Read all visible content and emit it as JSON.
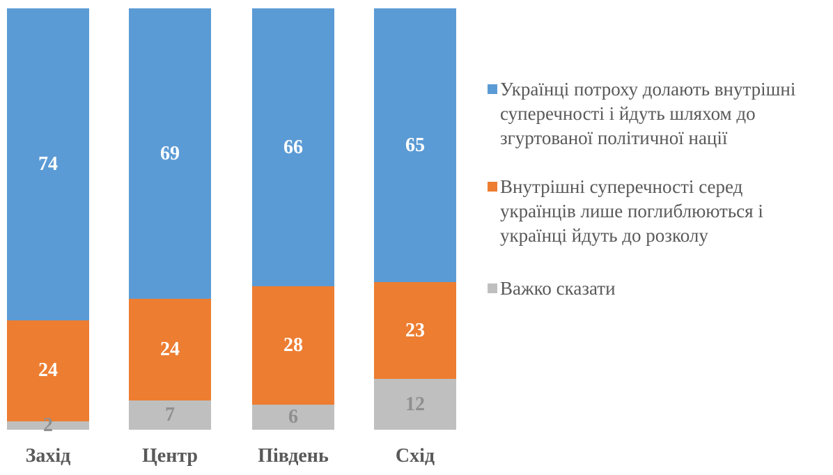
{
  "chart_data": {
    "type": "bar",
    "stacked": true,
    "orientation": "vertical",
    "title": "",
    "xlabel": "",
    "ylabel": "",
    "ylim": [
      0,
      100
    ],
    "grid": false,
    "legend_position": "right",
    "categories": [
      "Захід",
      "Центр",
      "Південь",
      "Схід"
    ],
    "series": [
      {
        "name": "Українці потроху долають внутрішні суперечності і йдуть шляхом до згуртованої політичної нації",
        "legend_label": "Українці потроху долають внутрішні\nсуперечності і йдуть шляхом до\nзгуртованої політичної нації",
        "color": "#5B9BD5",
        "label_color": "#FFFFFF",
        "values": [
          74,
          69,
          66,
          65
        ]
      },
      {
        "name": "Внутрішні суперечності серед українців лише поглиблюються і українці йдуть до розколу",
        "legend_label": "Внутрішні суперечності серед\nукраїнців лише поглиблюються і\nукраїнці йдуть до розколу",
        "color": "#ED7D31",
        "label_color": "#FFFFFF",
        "values": [
          24,
          24,
          28,
          23
        ]
      },
      {
        "name": "Важко сказати",
        "legend_label": "Важко сказати",
        "color": "#BFBFBF",
        "label_color": "#8F8F8F",
        "values": [
          2,
          7,
          6,
          12
        ]
      }
    ]
  },
  "styles": {
    "axis_text_color": "#595959",
    "legend_text_color": "#595959",
    "background": "#ffffff"
  }
}
